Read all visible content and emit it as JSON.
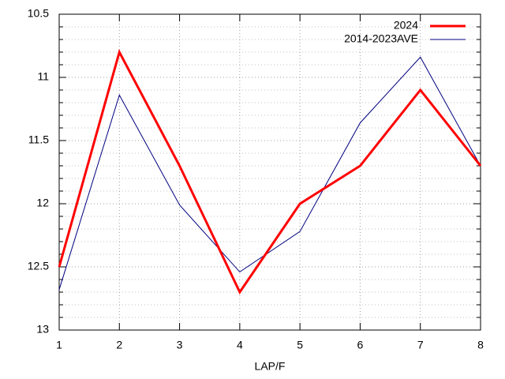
{
  "chart_data": {
    "type": "line",
    "x_label": "LAP/F",
    "x": [
      1,
      2,
      3,
      4,
      5,
      6,
      7,
      8
    ],
    "series": [
      {
        "name": "2024",
        "color": "#ff0000",
        "width": 3,
        "values": [
          12.5,
          10.8,
          11.7,
          12.7,
          12.0,
          11.7,
          11.1,
          11.7
        ]
      },
      {
        "name": "2014-2023AVE",
        "color": "#000080",
        "width": 1,
        "values": [
          12.68,
          11.14,
          12.01,
          12.54,
          12.22,
          11.36,
          10.84,
          11.7
        ]
      }
    ],
    "xlim": [
      1,
      8
    ],
    "xticks": [
      1,
      2,
      3,
      4,
      5,
      6,
      7,
      8
    ],
    "ylim": [
      10.5,
      13
    ],
    "y_inverted": true,
    "yticks": [
      10.5,
      11,
      11.5,
      12,
      12.5,
      13
    ],
    "yminorticks": [
      10.6,
      10.7,
      10.8,
      10.9,
      11.1,
      11.2,
      11.3,
      11.4,
      11.6,
      11.7,
      11.8,
      11.9,
      12.1,
      12.2,
      12.3,
      12.4,
      12.6,
      12.7,
      12.8,
      12.9
    ],
    "grid": true,
    "legend": "top-right"
  }
}
